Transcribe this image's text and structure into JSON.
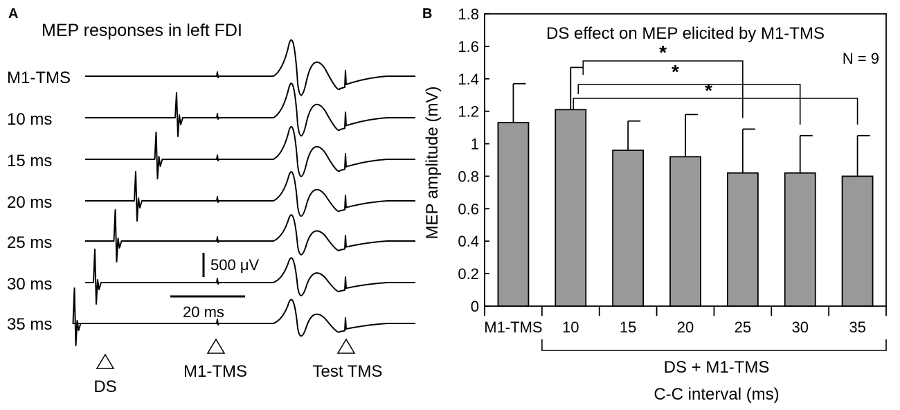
{
  "panel_a": {
    "letter": "A",
    "title": "MEP responses in left FDI",
    "rows": [
      "M1-TMS",
      "10 ms",
      "15 ms",
      "20 ms",
      "25 ms",
      "30 ms",
      "35 ms"
    ],
    "ds_delays_ms": [
      null,
      10,
      15,
      20,
      25,
      30,
      35
    ],
    "scale_amplitude": "500 μV",
    "scale_time": "20 ms",
    "markers": [
      "DS",
      "M1-TMS",
      "Test TMS"
    ]
  },
  "chart_data": {
    "type": "bar",
    "letter": "B",
    "title": "DS effect on MEP elicited by M1-TMS",
    "annotation": "N = 9",
    "categories": [
      "M1-TMS",
      "10",
      "15",
      "20",
      "25",
      "30",
      "35"
    ],
    "values": [
      1.13,
      1.21,
      0.96,
      0.92,
      0.82,
      0.82,
      0.8
    ],
    "errors": [
      0.24,
      0.26,
      0.18,
      0.26,
      0.27,
      0.23,
      0.25
    ],
    "ylim": [
      0,
      1.8
    ],
    "yticks": [
      "0",
      "0.2",
      "0.4",
      "0.6",
      "0.8",
      "1",
      "1.2",
      "1.4",
      "1.6",
      "1.8"
    ],
    "ylabel": "MEP amplitude (mV)",
    "group_label": "DS + M1-TMS",
    "xlabel": "C-C interval (ms)",
    "significance": [
      {
        "from": "10",
        "to": "25",
        "label": "*"
      },
      {
        "from": "10",
        "to": "30",
        "label": "*"
      },
      {
        "from": "10",
        "to": "35",
        "label": "*"
      }
    ]
  }
}
